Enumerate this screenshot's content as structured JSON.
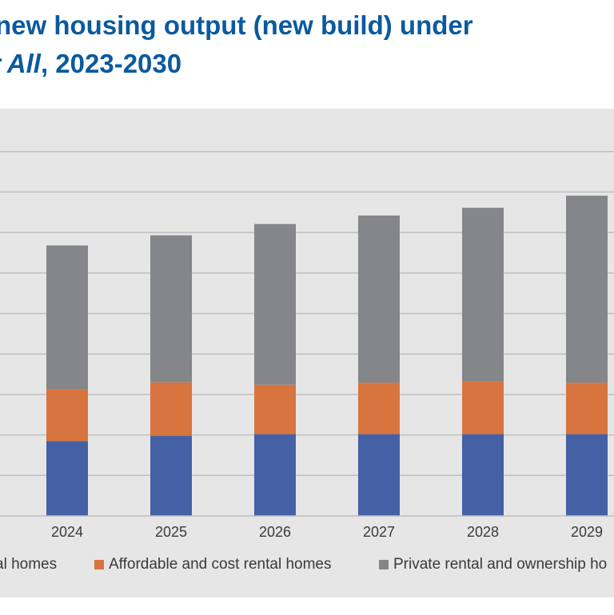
{
  "title": {
    "line1": "new housing output (new build) under",
    "line2_italic": "r All",
    "line2_rest": ", 2023-2030"
  },
  "chart_data": {
    "type": "bar",
    "stacked": true,
    "categories": [
      "2024",
      "2025",
      "2026",
      "2027",
      "2028",
      "2029"
    ],
    "series": [
      {
        "name": "al homes",
        "color": "#4461a5",
        "values": [
          1.85,
          1.98,
          2.02,
          2.02,
          2.02,
          2.02
        ]
      },
      {
        "name": "Affordable and cost rental homes",
        "color": "#d8743f",
        "values": [
          1.27,
          1.32,
          1.22,
          1.27,
          1.3,
          1.27
        ]
      },
      {
        "name": "Private rental and ownership ho",
        "color": "#848689",
        "values": [
          3.56,
          3.63,
          3.97,
          4.13,
          4.29,
          4.62
        ]
      }
    ],
    "ylim": [
      0,
      9.9
    ],
    "grid": true,
    "legend_position": "bottom"
  },
  "colors": {
    "title": "#0b5a9e",
    "panel_background": "#e6e6e6",
    "gridline": "#bfbfbf"
  }
}
